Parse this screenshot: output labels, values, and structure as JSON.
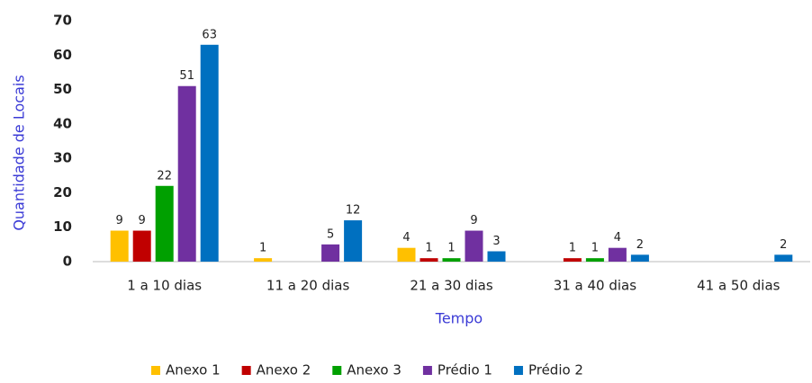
{
  "chart_data": {
    "type": "bar",
    "categories": [
      "1 a 10 dias",
      "11 a 20 dias",
      "21 a 30 dias",
      "31 a 40 dias",
      "41 a 50 dias"
    ],
    "series": [
      {
        "name": "Anexo 1",
        "color": "#ffc000",
        "values": [
          9,
          1,
          4,
          null,
          null
        ]
      },
      {
        "name": "Anexo 2",
        "color": "#c00000",
        "values": [
          9,
          null,
          1,
          1,
          null
        ]
      },
      {
        "name": "Anexo 3",
        "color": "#00a000",
        "values": [
          22,
          null,
          1,
          1,
          null
        ]
      },
      {
        "name": "Prédio 1",
        "color": "#7030a0",
        "values": [
          51,
          5,
          9,
          4,
          null
        ]
      },
      {
        "name": "Prédio 2",
        "color": "#0070c0",
        "values": [
          63,
          12,
          3,
          2,
          2
        ]
      }
    ],
    "xlabel": "Tempo",
    "ylabel": "Quantidade de Locais",
    "ylim": [
      0,
      70
    ],
    "yticks": [
      0,
      10,
      20,
      30,
      40,
      50,
      60,
      70
    ],
    "grid": false,
    "legend": "bottom"
  }
}
